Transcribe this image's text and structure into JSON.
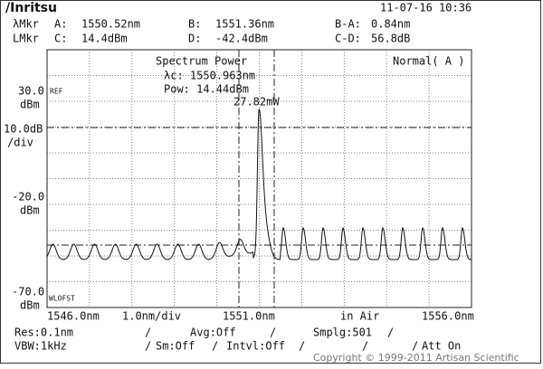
{
  "header": {
    "logo": "/Inritsu",
    "datetime": "11-07-16 10:36",
    "marker_rows": [
      [
        "λMkr",
        "A:",
        "1550.52nm",
        "B:",
        "1551.36nm",
        "B-A:",
        "0.84nm"
      ],
      [
        "LMkr",
        "C:",
        "14.4dBm",
        "D:",
        "-42.4dBm",
        "C-D:",
        "56.8dB"
      ]
    ]
  },
  "plot": {
    "analysis_title": "Spectrum Power",
    "center_wavelength": "λc: 1550.963nm",
    "power_dbm": "Pow: 14.44dBm",
    "power_mw": "27.82mW",
    "mode": "Normal( A )",
    "left_labels": {
      "ref_level": "30.0",
      "ref_tag": "REF",
      "ref_unit": "dBm",
      "scale": "10.0dB",
      "scale_unit": "/div",
      "mid_level": "-20.0",
      "mid_unit": "dBm",
      "bottom_level": "-70.0",
      "bottom_unit": "dBm",
      "offset_tag": "WLOFST"
    },
    "x_labels": {
      "start": "1546.0nm",
      "span": "1.0nm/div",
      "center": "1551.0nm",
      "medium": "in Air",
      "stop": "1556.0nm"
    }
  },
  "footer": {
    "res": "Res:0.1nm",
    "avg": "Avg:Off",
    "smplg": "Smplg:501",
    "vbw": "VBW:1kHz",
    "sm": "Sm:Off",
    "intvl": "Intvl:Off",
    "att": "Att On",
    "copyright": "Copyright © 1999-2011 Artisan Scientific"
  }
}
